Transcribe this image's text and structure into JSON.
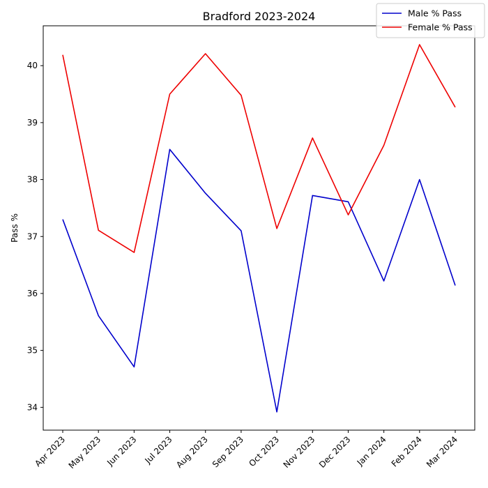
{
  "chart_data": {
    "type": "line",
    "title": "Bradford 2023-2024",
    "xlabel": "",
    "ylabel": "Pass %",
    "categories": [
      "Apr 2023",
      "May 2023",
      "Jun 2023",
      "Jul 2023",
      "Aug 2023",
      "Sep 2023",
      "Oct 2023",
      "Nov 2023",
      "Dec 2023",
      "Jan 2024",
      "Feb 2024",
      "Mar 2024"
    ],
    "series": [
      {
        "name": "Male % Pass",
        "color": "#0000cc",
        "values": [
          37.3,
          35.61,
          34.71,
          38.53,
          37.76,
          37.1,
          33.92,
          37.72,
          37.61,
          36.22,
          38.0,
          36.14
        ]
      },
      {
        "name": "Female % Pass",
        "color": "#ee0000",
        "values": [
          40.19,
          37.11,
          36.72,
          39.5,
          40.21,
          39.48,
          37.14,
          38.73,
          37.38,
          38.6,
          40.37,
          39.27
        ]
      }
    ],
    "ylim": [
      33.6,
      40.7
    ],
    "yticks": [
      34,
      35,
      36,
      37,
      38,
      39,
      40
    ],
    "grid": false,
    "legend_position": "top-right"
  }
}
